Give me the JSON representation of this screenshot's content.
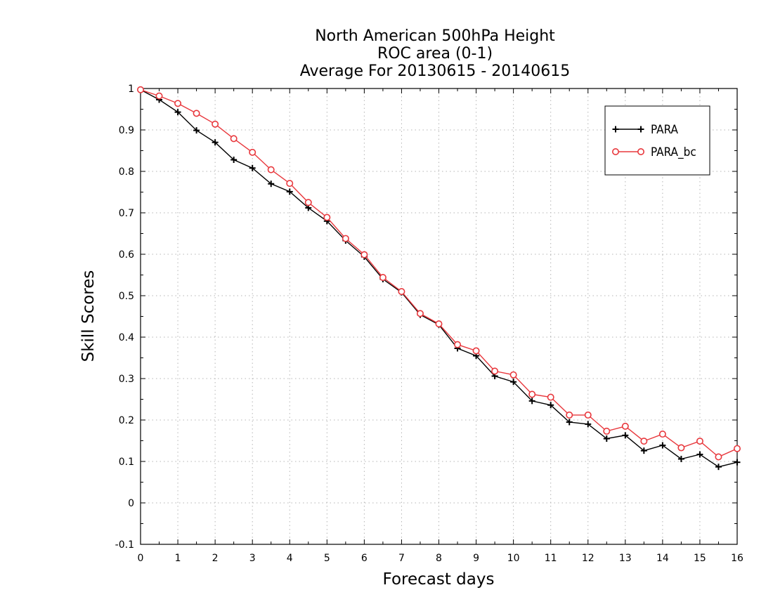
{
  "chart_data": {
    "type": "line",
    "title_lines": [
      "North American 500hPa Height",
      "ROC area (0-1)",
      "Average For 20130615 - 20140615"
    ],
    "xlabel": "Forecast days",
    "ylabel": "Skill Scores",
    "xlim": [
      0,
      16
    ],
    "ylim": [
      -0.1,
      1
    ],
    "x_ticks": [
      "0",
      "1",
      "2",
      "3",
      "4",
      "5",
      "6",
      "7",
      "8",
      "9",
      "10",
      "11",
      "12",
      "13",
      "14",
      "15",
      "16"
    ],
    "y_ticks": [
      "-0.1",
      "0",
      "0.1",
      "0.2",
      "0.3",
      "0.4",
      "0.5",
      "0.6",
      "0.7",
      "0.8",
      "0.9",
      "1"
    ],
    "grid": true,
    "legend_position": "top-right",
    "x": [
      0,
      0.5,
      1,
      1.5,
      2,
      2.5,
      3,
      3.5,
      4,
      4.5,
      5,
      5.5,
      6,
      6.5,
      7,
      7.5,
      8,
      8.5,
      9,
      9.5,
      10,
      10.5,
      11,
      11.5,
      12,
      12.5,
      13,
      13.5,
      14,
      14.5,
      15,
      15.5,
      16
    ],
    "series": [
      {
        "name": "PARA",
        "color": "#000000",
        "marker": "plus",
        "values": [
          0.997,
          0.973,
          0.943,
          0.899,
          0.87,
          0.828,
          0.808,
          0.77,
          0.751,
          0.712,
          0.68,
          0.633,
          0.594,
          0.54,
          0.508,
          0.454,
          0.43,
          0.373,
          0.355,
          0.306,
          0.292,
          0.246,
          0.236,
          0.195,
          0.19,
          0.155,
          0.163,
          0.126,
          0.139,
          0.106,
          0.117,
          0.087,
          0.098
        ]
      },
      {
        "name": "PARA_bc",
        "color": "#e8383d",
        "marker": "circle",
        "values": [
          0.997,
          0.982,
          0.964,
          0.94,
          0.914,
          0.879,
          0.846,
          0.804,
          0.771,
          0.725,
          0.689,
          0.638,
          0.599,
          0.544,
          0.51,
          0.457,
          0.432,
          0.382,
          0.367,
          0.318,
          0.309,
          0.262,
          0.255,
          0.212,
          0.212,
          0.173,
          0.185,
          0.149,
          0.166,
          0.133,
          0.149,
          0.111,
          0.131
        ]
      }
    ]
  }
}
